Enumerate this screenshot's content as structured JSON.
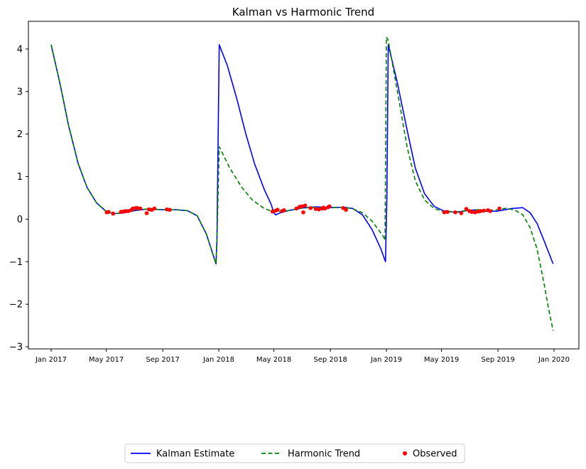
{
  "chart_data": {
    "type": "line",
    "title": "Kalman vs Harmonic Trend",
    "xlabel": "",
    "ylabel": "",
    "xlim": [
      "2017-01-01",
      "2020-01-01"
    ],
    "ylim": [
      -3.05,
      4.65
    ],
    "x_ticks": [
      {
        "date": "2017-01-01",
        "label": "Jan 2017"
      },
      {
        "date": "2017-05-01",
        "label": "May 2017"
      },
      {
        "date": "2017-09-01",
        "label": "Sep 2017"
      },
      {
        "date": "2018-01-01",
        "label": "Jan 2018"
      },
      {
        "date": "2018-05-01",
        "label": "May 2018"
      },
      {
        "date": "2018-09-01",
        "label": "Sep 2018"
      },
      {
        "date": "2019-01-01",
        "label": "Jan 2019"
      },
      {
        "date": "2019-05-01",
        "label": "May 2019"
      },
      {
        "date": "2019-09-01",
        "label": "Sep 2019"
      },
      {
        "date": "2020-01-01",
        "label": "Jan 2020"
      }
    ],
    "y_ticks": [
      {
        "value": -3,
        "label": "−3"
      },
      {
        "value": -2,
        "label": "−2"
      },
      {
        "value": -1,
        "label": "−1"
      },
      {
        "value": 0,
        "label": "0"
      },
      {
        "value": 1,
        "label": "1"
      },
      {
        "value": 2,
        "label": "2"
      },
      {
        "value": 3,
        "label": "3"
      },
      {
        "value": 4,
        "label": "4"
      }
    ],
    "grid": false,
    "legend_position": "bottom-center",
    "series": [
      {
        "name": "Kalman Estimate",
        "kind": "line",
        "color": "#0000ff",
        "style": "solid",
        "points": [
          [
            "2017-01-01",
            4.1
          ],
          [
            "2017-01-20",
            3.2
          ],
          [
            "2017-02-08",
            2.2
          ],
          [
            "2017-03-01",
            1.3
          ],
          [
            "2017-03-20",
            0.75
          ],
          [
            "2017-04-10",
            0.38
          ],
          [
            "2017-05-01",
            0.18
          ],
          [
            "2017-05-20",
            0.13
          ],
          [
            "2017-06-10",
            0.15
          ],
          [
            "2017-07-01",
            0.2
          ],
          [
            "2017-08-01",
            0.24
          ],
          [
            "2017-09-01",
            0.22
          ],
          [
            "2017-10-01",
            0.22
          ],
          [
            "2017-10-25",
            0.2
          ],
          [
            "2017-11-15",
            0.08
          ],
          [
            "2017-12-05",
            -0.35
          ],
          [
            "2017-12-26",
            -1.05
          ],
          [
            "2017-12-28",
            -0.5
          ],
          [
            "2018-01-02",
            4.1
          ],
          [
            "2018-01-20",
            3.6
          ],
          [
            "2018-02-10",
            2.8
          ],
          [
            "2018-03-01",
            2.0
          ],
          [
            "2018-03-20",
            1.3
          ],
          [
            "2018-04-10",
            0.7
          ],
          [
            "2018-04-25",
            0.35
          ],
          [
            "2018-05-01",
            0.15
          ],
          [
            "2018-05-05",
            0.1
          ],
          [
            "2018-05-15",
            0.15
          ],
          [
            "2018-06-01",
            0.2
          ],
          [
            "2018-07-01",
            0.26
          ],
          [
            "2018-08-01",
            0.29
          ],
          [
            "2018-09-01",
            0.27
          ],
          [
            "2018-10-01",
            0.28
          ],
          [
            "2018-10-20",
            0.25
          ],
          [
            "2018-11-10",
            0.1
          ],
          [
            "2018-12-01",
            -0.25
          ],
          [
            "2018-12-20",
            -0.7
          ],
          [
            "2018-12-30",
            -1.0
          ],
          [
            "2019-01-02",
            0.5
          ],
          [
            "2019-01-05",
            4.1
          ],
          [
            "2019-01-25",
            3.2
          ],
          [
            "2019-02-15",
            2.1
          ],
          [
            "2019-03-05",
            1.2
          ],
          [
            "2019-03-25",
            0.6
          ],
          [
            "2019-04-15",
            0.3
          ],
          [
            "2019-05-05",
            0.2
          ],
          [
            "2019-06-01",
            0.16
          ],
          [
            "2019-07-01",
            0.21
          ],
          [
            "2019-07-20",
            0.22
          ],
          [
            "2019-08-10",
            0.18
          ],
          [
            "2019-09-01",
            0.19
          ],
          [
            "2019-10-01",
            0.25
          ],
          [
            "2019-10-25",
            0.27
          ],
          [
            "2019-11-10",
            0.15
          ],
          [
            "2019-11-25",
            -0.1
          ],
          [
            "2019-12-10",
            -0.5
          ],
          [
            "2019-12-30",
            -1.05
          ]
        ]
      },
      {
        "name": "Harmonic Trend",
        "kind": "line",
        "color": "#008000",
        "style": "dashed",
        "points": [
          [
            "2017-01-01",
            4.1
          ],
          [
            "2017-01-20",
            3.2
          ],
          [
            "2017-02-08",
            2.2
          ],
          [
            "2017-03-01",
            1.3
          ],
          [
            "2017-03-20",
            0.75
          ],
          [
            "2017-04-10",
            0.38
          ],
          [
            "2017-05-01",
            0.18
          ],
          [
            "2017-05-20",
            0.13
          ],
          [
            "2017-06-10",
            0.16
          ],
          [
            "2017-07-01",
            0.21
          ],
          [
            "2017-08-01",
            0.24
          ],
          [
            "2017-09-01",
            0.22
          ],
          [
            "2017-10-01",
            0.22
          ],
          [
            "2017-10-25",
            0.2
          ],
          [
            "2017-11-15",
            0.08
          ],
          [
            "2017-12-05",
            -0.35
          ],
          [
            "2017-12-26",
            -1.05
          ],
          [
            "2017-12-28",
            -0.5
          ],
          [
            "2018-01-02",
            1.7
          ],
          [
            "2018-01-25",
            1.2
          ],
          [
            "2018-02-20",
            0.75
          ],
          [
            "2018-03-15",
            0.45
          ],
          [
            "2018-04-10",
            0.25
          ],
          [
            "2018-05-01",
            0.17
          ],
          [
            "2018-06-01",
            0.2
          ],
          [
            "2018-07-01",
            0.26
          ],
          [
            "2018-08-01",
            0.28
          ],
          [
            "2018-09-01",
            0.27
          ],
          [
            "2018-10-01",
            0.28
          ],
          [
            "2018-10-20",
            0.24
          ],
          [
            "2018-11-10",
            0.15
          ],
          [
            "2018-12-01",
            -0.05
          ],
          [
            "2018-12-25",
            -0.4
          ],
          [
            "2018-12-29",
            -0.5
          ],
          [
            "2019-01-01",
            4.28
          ],
          [
            "2019-01-05",
            4.2
          ],
          [
            "2019-01-25",
            3.0
          ],
          [
            "2019-02-15",
            1.7
          ],
          [
            "2019-03-05",
            0.9
          ],
          [
            "2019-03-25",
            0.45
          ],
          [
            "2019-04-15",
            0.25
          ],
          [
            "2019-05-05",
            0.18
          ],
          [
            "2019-06-01",
            0.17
          ],
          [
            "2019-07-01",
            0.21
          ],
          [
            "2019-07-20",
            0.22
          ],
          [
            "2019-08-10",
            0.2
          ],
          [
            "2019-09-01",
            0.22
          ],
          [
            "2019-09-20",
            0.26
          ],
          [
            "2019-10-10",
            0.2
          ],
          [
            "2019-10-25",
            0.1
          ],
          [
            "2019-11-10",
            -0.2
          ],
          [
            "2019-11-25",
            -0.7
          ],
          [
            "2019-12-10",
            -1.5
          ],
          [
            "2019-12-20",
            -2.1
          ],
          [
            "2019-12-30",
            -2.62
          ]
        ]
      },
      {
        "name": "Observed",
        "kind": "scatter",
        "color": "#ff0000",
        "points": [
          [
            "2017-05-02",
            0.16
          ],
          [
            "2017-05-06",
            0.17
          ],
          [
            "2017-05-16",
            0.13
          ],
          [
            "2017-06-02",
            0.17
          ],
          [
            "2017-06-08",
            0.18
          ],
          [
            "2017-06-12",
            0.19
          ],
          [
            "2017-06-18",
            0.19
          ],
          [
            "2017-06-24",
            0.21
          ],
          [
            "2017-06-28",
            0.25
          ],
          [
            "2017-07-04",
            0.26
          ],
          [
            "2017-07-08",
            0.26
          ],
          [
            "2017-07-14",
            0.25
          ],
          [
            "2017-07-28",
            0.14
          ],
          [
            "2017-08-02",
            0.23
          ],
          [
            "2017-08-08",
            0.22
          ],
          [
            "2017-08-14",
            0.25
          ],
          [
            "2017-09-10",
            0.23
          ],
          [
            "2017-09-16",
            0.22
          ],
          [
            "2018-04-28",
            0.18
          ],
          [
            "2018-05-05",
            0.2
          ],
          [
            "2018-05-09",
            0.22
          ],
          [
            "2018-05-19",
            0.19
          ],
          [
            "2018-05-23",
            0.21
          ],
          [
            "2018-06-19",
            0.25
          ],
          [
            "2018-06-26",
            0.29
          ],
          [
            "2018-07-01",
            0.3
          ],
          [
            "2018-07-04",
            0.16
          ],
          [
            "2018-07-08",
            0.32
          ],
          [
            "2018-07-20",
            0.26
          ],
          [
            "2018-07-31",
            0.24
          ],
          [
            "2018-08-07",
            0.23
          ],
          [
            "2018-08-14",
            0.25
          ],
          [
            "2018-08-17",
            0.27
          ],
          [
            "2018-08-20",
            0.25
          ],
          [
            "2018-08-27",
            0.28
          ],
          [
            "2018-08-30",
            0.3
          ],
          [
            "2018-09-29",
            0.26
          ],
          [
            "2018-10-05",
            0.22
          ],
          [
            "2019-05-07",
            0.16
          ],
          [
            "2019-05-14",
            0.17
          ],
          [
            "2019-05-31",
            0.16
          ],
          [
            "2019-06-13",
            0.14
          ],
          [
            "2019-06-24",
            0.24
          ],
          [
            "2019-07-01",
            0.19
          ],
          [
            "2019-07-06",
            0.17
          ],
          [
            "2019-07-13",
            0.16
          ],
          [
            "2019-07-20",
            0.18
          ],
          [
            "2019-07-25",
            0.19
          ],
          [
            "2019-08-01",
            0.2
          ],
          [
            "2019-08-10",
            0.21
          ],
          [
            "2019-08-15",
            0.19
          ],
          [
            "2019-09-04",
            0.25
          ]
        ]
      }
    ]
  }
}
